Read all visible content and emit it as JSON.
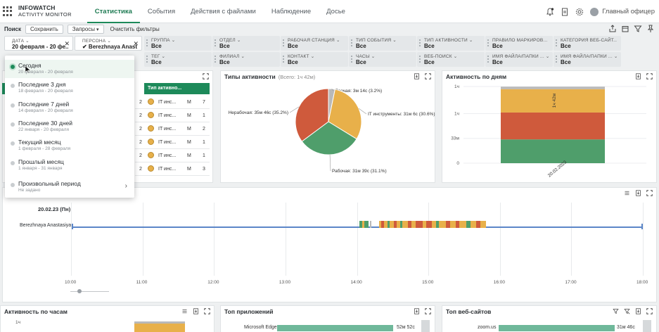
{
  "header": {
    "logo_line1": "INFOWATCH",
    "logo_line2": "ACTIVITY MONITOR",
    "tabs": [
      {
        "label": "Статистика",
        "active": true
      },
      {
        "label": "События",
        "active": false
      },
      {
        "label": "Действия с файлами",
        "active": false
      },
      {
        "label": "Наблюдение",
        "active": false
      },
      {
        "label": "Досье",
        "active": false
      }
    ],
    "user_name": "Главный офицер"
  },
  "toolbar": {
    "search_label": "Поиск",
    "save_label": "Сохранить",
    "queries_label": "Запросы",
    "clear_label": "Очистить фильтры"
  },
  "filters": [
    {
      "label": "ДАТА",
      "value": "20 февраля - 20 фе..."
    },
    {
      "label": "ПЕРСОНА",
      "value": "✔ Berezhnaya Anast..."
    },
    {
      "label": "ГРУППА",
      "value": "Все"
    },
    {
      "label": "ОТДЕЛ",
      "value": "Все"
    },
    {
      "label": "РАБОЧАЯ СТАНЦИЯ",
      "value": "Все"
    },
    {
      "label": "ТИП СОБЫТИЯ",
      "value": "Все"
    },
    {
      "label": "ТИП АКТИВНОСТИ",
      "value": "Все"
    },
    {
      "label": "ПРАВИЛО МАРКИРОВ...",
      "value": "Все"
    },
    {
      "label": "КАТЕГОРИЯ ВЕБ-САЙТ...",
      "value": "Все"
    },
    {
      "label": "ТЕГ",
      "value": "Все"
    },
    {
      "label": "ФИЛИАЛ",
      "value": "Все"
    },
    {
      "label": "КОНТАКТ",
      "value": "Все"
    },
    {
      "label": "ЧАСЫ",
      "value": "Все"
    },
    {
      "label": "ВЕБ-ПОИСК",
      "value": "Все"
    },
    {
      "label": "ИМЯ ФАЙЛА/ПАПКИ ...",
      "value": "Все"
    },
    {
      "label": "ИМЯ ФАЙЛА/ПАПКИ ...",
      "value": "Все"
    }
  ],
  "date_dropdown": {
    "items": [
      {
        "title": "Сегодня",
        "dates": "20 февраля - 20 февраля",
        "selected": true
      },
      {
        "title": "Последние 3 дня",
        "dates": "18 февраля - 20 февраля",
        "selected": false
      },
      {
        "title": "Последние 7 дней",
        "dates": "14 февраля - 20 февраля",
        "selected": false
      },
      {
        "title": "Последние 30 дней",
        "dates": "22 января - 20 февраля",
        "selected": false
      },
      {
        "title": "Текущий месяц",
        "dates": "1 февраля - 28 февраля",
        "selected": false
      },
      {
        "title": "Прошлый месяц",
        "dates": "1 января - 31 января",
        "selected": false
      },
      {
        "title": "Произвольный период",
        "dates": "Не задано",
        "selected": false
      }
    ]
  },
  "table": {
    "header": "Тип активно...",
    "rows": [
      {
        "num": "2",
        "type": "IT инс...",
        "c1": "M",
        "c2": "7"
      },
      {
        "num": "2",
        "type": "IT инс...",
        "c1": "M",
        "c2": "1"
      },
      {
        "num": "2",
        "type": "IT инс...",
        "c1": "M",
        "c2": "2"
      },
      {
        "num": "2",
        "type": "IT инс...",
        "c1": "M",
        "c2": "1"
      },
      {
        "num": "2",
        "type": "IT инс...",
        "c1": "M",
        "c2": "1"
      },
      {
        "num": "2",
        "type": "IT инс...",
        "c1": "M",
        "c2": "3"
      }
    ]
  },
  "activity_types": {
    "title": "Типы активности",
    "subtitle": "(Всего: 1ч 42м)"
  },
  "activity_days": {
    "title": "Активность по дням"
  },
  "timeline": {
    "date_label": "20.02.23 (Пн)",
    "person": "Berezhnaya Anastasiya",
    "hours": [
      "10:00",
      "11:00",
      "12:00",
      "13:00",
      "14:00",
      "15:00",
      "16:00",
      "17:00",
      "18:00"
    ]
  },
  "bottom": {
    "hours_title": "Активность по часам",
    "hours_tick": "1ч",
    "apps_title": "Топ приложений",
    "apps": [
      {
        "name": "Microsoft Edge",
        "value": "52м 52с"
      }
    ],
    "sites_title": "Топ веб-сайтов",
    "sites": [
      {
        "name": "zoom.us",
        "value": "31м 46с"
      }
    ]
  },
  "colors": {
    "accent": "#1d8a5a",
    "work": "#4f9e6b",
    "idle": "#cf5a3c",
    "it_tools": "#e8b04a",
    "other": "#b9b9b9"
  },
  "chart_data": [
    {
      "type": "pie",
      "title": "Типы активности",
      "subtitle": "(Всего: 1ч 42м)",
      "slices": [
        {
          "name": "Прочая",
          "label": "Прочая: 3м 14с (3.2%)",
          "value": 3.2,
          "color": "#b9b9b9"
        },
        {
          "name": "IT инструменты",
          "label": "IT инструменты: 31м 6с (30.6%)",
          "value": 30.6,
          "color": "#e8b04a"
        },
        {
          "name": "Рабочая",
          "label": "Рабочая: 31м 39с (31.1%)",
          "value": 31.1,
          "color": "#4f9e6b"
        },
        {
          "name": "Нерабочая",
          "label": "Нерабочая: 35м 46с (35.2%)",
          "value": 35.2,
          "color": "#cf5a3c"
        }
      ]
    },
    {
      "type": "bar",
      "title": "Активность по дням",
      "categories": [
        "20.02.2023"
      ],
      "series": [
        {
          "name": "Рабочая",
          "values": [
            31.65
          ],
          "color": "#4f9e6b"
        },
        {
          "name": "Нерабочая",
          "values": [
            35.77
          ],
          "color": "#cf5a3c"
        },
        {
          "name": "IT инструменты",
          "values": [
            31.1
          ],
          "color": "#e8b04a"
        },
        {
          "name": "Прочая",
          "values": [
            3.23
          ],
          "color": "#b9b9b9"
        }
      ],
      "yticks": [
        "0",
        "33м",
        "1ч",
        "1ч"
      ],
      "ylim": [
        0,
        102
      ],
      "bar_label": "1ч 42м"
    }
  ]
}
